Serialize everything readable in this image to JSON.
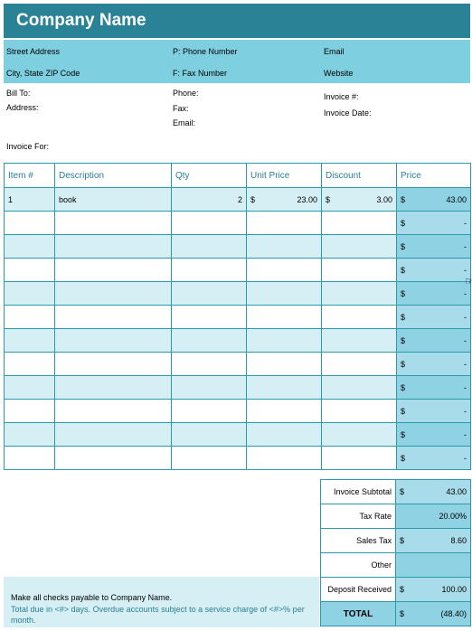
{
  "company": {
    "name": "Company Name"
  },
  "band": {
    "street": "Street Address",
    "city": "City, State ZIP Code",
    "phone": "P: Phone Number",
    "fax": "F: Fax Number",
    "email": "Email",
    "website": "Website"
  },
  "info": {
    "bill_to": "Bill To:",
    "address": "Address:",
    "phone": "Phone:",
    "fax": "Fax:",
    "email": "Email:",
    "invoice_no": "Invoice #:",
    "invoice_date": "Invoice Date:",
    "invoice_for": "Invoice For:"
  },
  "table": {
    "headers": [
      "Item #",
      "Description",
      "Qty",
      "Unit Price",
      "Discount",
      "Price"
    ],
    "currency": "$",
    "dash": "-",
    "row1": {
      "item": "1",
      "description": "book",
      "qty": "2",
      "unit_price": "23.00",
      "discount": "3.00",
      "price": "43.00"
    }
  },
  "totals": {
    "subtotal_label": "Invoice Subtotal",
    "subtotal": "43.00",
    "tax_rate_label": "Tax Rate",
    "tax_rate": "20.00%",
    "sales_tax_label": "Sales Tax",
    "sales_tax": "8.60",
    "other_label": "Other",
    "deposit_label": "Deposit Received",
    "deposit": "100.00",
    "total_label": "TOTAL",
    "total": "(48.40)"
  },
  "footer": {
    "line1": "Make all checks payable to Company Name.",
    "line2": "Total due in <#> days. Overdue accounts subject to a service charge of <#>% per month."
  }
}
